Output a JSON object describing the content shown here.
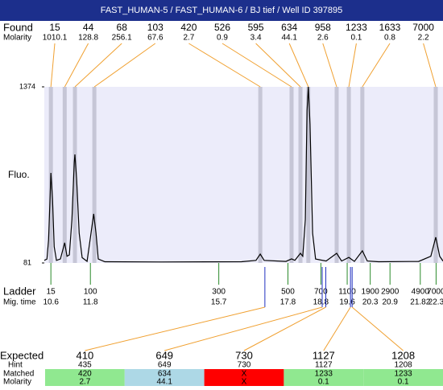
{
  "chart_data": {
    "type": "line",
    "title": "FAST_HUMAN-5 / FAST_HUMAN-6 / BJ tief / Well ID 397895",
    "labels": {
      "found": "Found",
      "molarity": "Molarity",
      "y": "Fluo.",
      "ladder": "Ladder",
      "migtime": "Mig. time",
      "expected": "Expected",
      "hint": "Hint",
      "matched": "Matched",
      "table_molarity": "Molarity"
    },
    "xlim": [
      10.4,
      22.51
    ],
    "ylim": [
      81,
      1374
    ],
    "yticks": [
      81,
      1374
    ],
    "trace": {
      "color": "#000000",
      "x": [
        10.4,
        10.48,
        10.53,
        10.58,
        10.6,
        10.65,
        10.7,
        10.77,
        10.89,
        11.02,
        11.09,
        11.16,
        11.24,
        11.31,
        11.33,
        11.38,
        11.46,
        11.55,
        11.7,
        11.82,
        11.9,
        11.97,
        12.04,
        12.24,
        13.95,
        16.39,
        16.83,
        16.96,
        17.08,
        17.74,
        17.91,
        18.01,
        18.18,
        18.25,
        18.33,
        18.38,
        18.42,
        18.47,
        18.55,
        18.64,
        18.96,
        19.28,
        19.43,
        19.65,
        19.82,
        20.06,
        20.21,
        20.55,
        21.77,
        22.14,
        22.29,
        22.41,
        22.51
      ],
      "y": [
        100,
        110,
        250,
        600,
        742,
        550,
        200,
        100,
        110,
        229,
        130,
        140,
        400,
        820,
        878,
        700,
        300,
        120,
        93,
        300,
        441,
        300,
        110,
        90,
        88,
        90,
        100,
        146,
        100,
        92,
        111,
        100,
        152,
        130,
        400,
        1200,
        1374,
        1100,
        300,
        110,
        95,
        152,
        95,
        122,
        92,
        170,
        95,
        90,
        92,
        130,
        270,
        130,
        95
      ]
    },
    "found": {
      "sizes": [
        15,
        44,
        68,
        103,
        420,
        526,
        595,
        634,
        958,
        1233,
        1633,
        7000
      ],
      "molarity": [
        1010.1,
        128.8,
        256.1,
        67.6,
        2.7,
        0.9,
        3.4,
        44.1,
        2.6,
        0.1,
        0.8,
        2.2
      ],
      "times": [
        10.6,
        11.02,
        11.33,
        11.92,
        16.96,
        17.91,
        18.18,
        18.42,
        19.28,
        19.65,
        20.06,
        22.29
      ]
    },
    "ladder": {
      "sizes": [
        15,
        100,
        300,
        500,
        700,
        1100,
        1900,
        2900,
        4900,
        7000
      ],
      "times": [
        10.6,
        11.8,
        15.7,
        17.8,
        18.8,
        19.6,
        20.3,
        20.9,
        21.82,
        22.3
      ]
    },
    "expected": {
      "values": [
        410,
        649,
        730,
        1127,
        1208
      ],
      "times": [
        17.1,
        18.84,
        18.95,
        19.7,
        19.75
      ],
      "hint": [
        435,
        649,
        730,
        1127,
        1208
      ],
      "matched": [
        420,
        634,
        "X",
        1233,
        1233
      ],
      "molarity": [
        2.7,
        44.1,
        "X",
        0.1,
        0.1
      ],
      "colors": [
        "#90e890",
        "#add8e6",
        "#ff0000",
        "#90e890",
        "#90e890"
      ]
    }
  }
}
